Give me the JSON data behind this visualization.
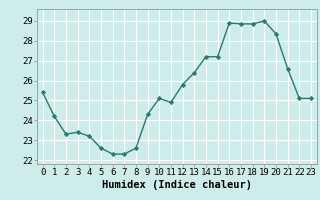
{
  "xlabel": "Humidex (Indice chaleur)",
  "x": [
    0,
    1,
    2,
    3,
    4,
    5,
    6,
    7,
    8,
    9,
    10,
    11,
    12,
    13,
    14,
    15,
    16,
    17,
    18,
    19,
    20,
    21,
    22,
    23
  ],
  "y": [
    25.4,
    24.2,
    23.3,
    23.4,
    23.2,
    22.6,
    22.3,
    22.3,
    22.6,
    24.3,
    25.1,
    24.9,
    25.8,
    26.4,
    27.2,
    27.2,
    28.9,
    28.85,
    28.85,
    29.0,
    28.35,
    26.6,
    25.1,
    25.1
  ],
  "line_color": "#2a7a6e",
  "marker": "D",
  "marker_size": 2.2,
  "line_width": 1.0,
  "bg_color": "#ceecea",
  "grid_color": "#ffffff",
  "ylim": [
    21.8,
    29.6
  ],
  "yticks": [
    22,
    23,
    24,
    25,
    26,
    27,
    28,
    29
  ],
  "xlim": [
    -0.5,
    23.5
  ],
  "tick_fontsize": 6.5,
  "xlabel_fontsize": 7.5
}
